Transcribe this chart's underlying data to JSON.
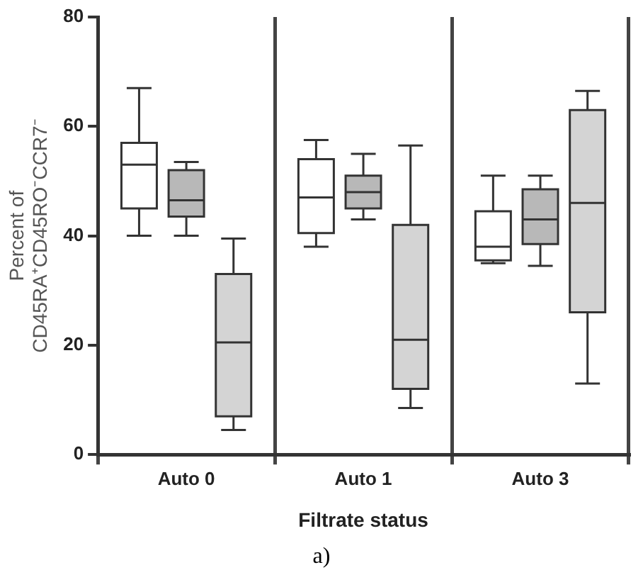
{
  "chart_data": {
    "type": "box",
    "ylabel": "Percent of\nCD45RA⁺CD45RO⁻CCR7⁻",
    "xlabel": "Filtrate status",
    "categories": [
      "Auto 0",
      "Auto 1",
      "Auto 3"
    ],
    "ylim": [
      0,
      80
    ],
    "yticks": [
      0,
      20,
      40,
      60,
      80
    ],
    "grid": "x",
    "legend": false,
    "annotations": [
      "a)"
    ],
    "series": [
      {
        "color": "#ffffff",
        "boxes": [
          {
            "low": 40,
            "q1": 45,
            "median": 53,
            "q3": 57,
            "high": 67
          },
          {
            "low": 38,
            "q1": 40.5,
            "median": 47,
            "q3": 54,
            "high": 57.5
          },
          {
            "low": 35,
            "q1": 35.5,
            "median": 38,
            "q3": 44.5,
            "high": 51
          }
        ]
      },
      {
        "color": "#b8b8b8",
        "boxes": [
          {
            "low": 40,
            "q1": 43.5,
            "median": 46.5,
            "q3": 52,
            "high": 53.5
          },
          {
            "low": 43,
            "q1": 45,
            "median": 48,
            "q3": 51,
            "high": 55
          },
          {
            "low": 34.5,
            "q1": 38.5,
            "median": 43,
            "q3": 48.5,
            "high": 51
          }
        ]
      },
      {
        "color": "#d4d4d4",
        "boxes": [
          {
            "low": 4.5,
            "q1": 7,
            "median": 20.5,
            "q3": 33,
            "high": 39.5
          },
          {
            "low": 8.5,
            "q1": 12,
            "median": 21,
            "q3": 42,
            "high": 56.5
          },
          {
            "low": 13,
            "q1": 26,
            "median": 46,
            "q3": 63,
            "high": 66.5
          }
        ]
      }
    ]
  }
}
